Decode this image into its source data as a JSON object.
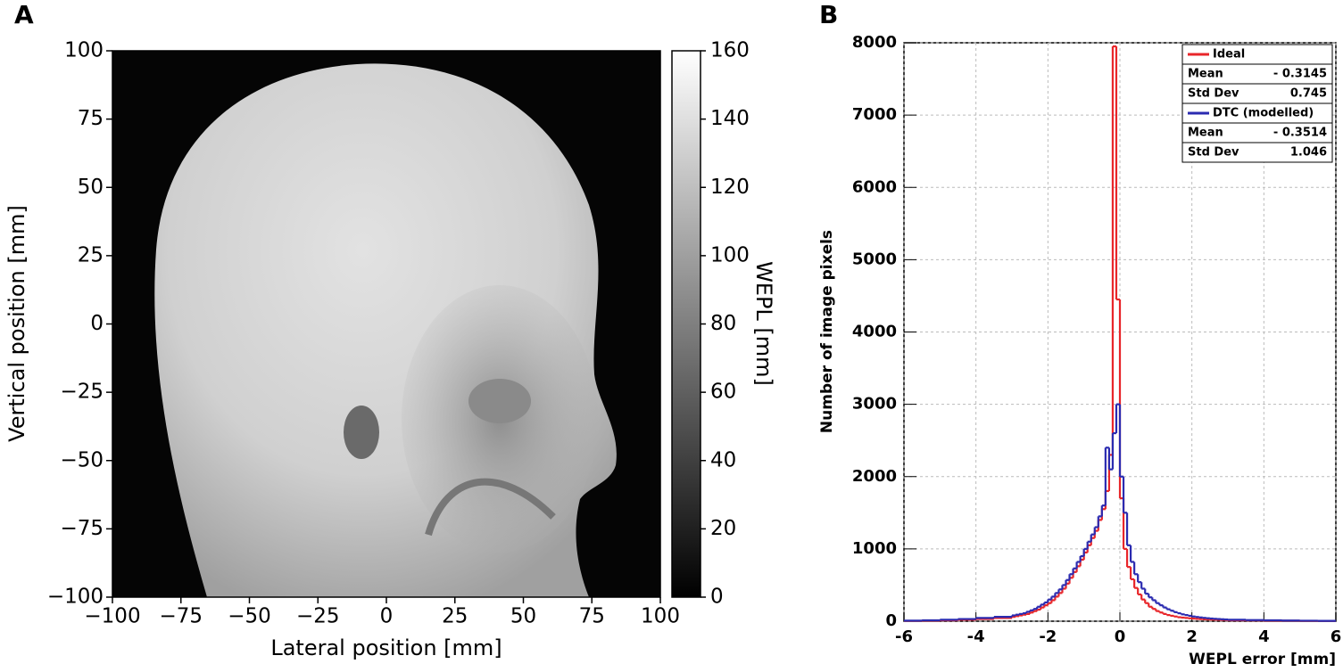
{
  "chart_data": [
    {
      "type": "image",
      "title": "A",
      "x_label": "Lateral position [mm]",
      "y_label": "Vertical position [mm]",
      "xlim": [
        -100,
        100
      ],
      "xticks": [
        {
          "value": -100,
          "label": "−100"
        },
        {
          "value": -75,
          "label": "−75"
        },
        {
          "value": -50,
          "label": "−50"
        },
        {
          "value": -25,
          "label": "−25"
        },
        0,
        25,
        50,
        75,
        100
      ],
      "ylim": [
        -100,
        100
      ],
      "yticks": [
        {
          "value": -100,
          "label": "−100"
        },
        {
          "value": -75,
          "label": "−75"
        },
        {
          "value": -50,
          "label": "−50"
        },
        {
          "value": -25,
          "label": "−25"
        },
        0,
        25,
        50,
        75,
        100
      ],
      "colorbar": {
        "label": "WEPL [mm]",
        "lim": [
          0,
          160
        ],
        "ticks": [
          0,
          20,
          40,
          60,
          80,
          100,
          120,
          140,
          160
        ]
      }
    },
    {
      "type": "histogram",
      "title": "B",
      "x_label": "WEPL error [mm]",
      "y_label": "Number of image pixels",
      "xlim": [
        -6,
        6
      ],
      "xticks": [
        -6,
        -4,
        -2,
        0,
        2,
        4,
        6
      ],
      "ylim": [
        0,
        8000
      ],
      "yticks": [
        0,
        1000,
        2000,
        3000,
        4000,
        5000,
        6000,
        7000,
        8000
      ],
      "grid": true,
      "legend": "upper right",
      "bins": [
        -6,
        -5.5,
        -5,
        -4.5,
        -4,
        -3.5,
        -3,
        -2.9,
        -2.8,
        -2.7,
        -2.6,
        -2.5,
        -2.4,
        -2.3,
        -2.2,
        -2.1,
        -2,
        -1.9,
        -1.8,
        -1.7,
        -1.6,
        -1.5,
        -1.4,
        -1.3,
        -1.2,
        -1.1,
        -1,
        -0.9,
        -0.8,
        -0.7,
        -0.6,
        -0.5,
        -0.4,
        -0.3,
        -0.2,
        -0.1,
        0,
        0.1,
        0.2,
        0.3,
        0.4,
        0.5,
        0.6,
        0.7,
        0.8,
        0.9,
        1,
        1.1,
        1.2,
        1.3,
        1.4,
        1.5,
        1.6,
        1.7,
        1.8,
        1.9,
        2,
        2.1,
        2.2,
        2.3,
        2.4,
        2.5,
        2.6,
        2.7,
        2.8,
        2.9,
        3,
        3.5,
        4,
        4.5,
        5,
        5.5,
        6
      ],
      "series": [
        {
          "name": "Ideal",
          "color": "#e8262a",
          "stats": [
            {
              "label": "Mean",
              "value": "- 0.3145"
            },
            {
              "label": "Std Dev",
              "value": "0.745"
            }
          ],
          "values": [
            5,
            8,
            12,
            20,
            30,
            45,
            60,
            70,
            80,
            90,
            100,
            120,
            140,
            160,
            190,
            220,
            250,
            290,
            340,
            390,
            450,
            520,
            600,
            680,
            760,
            850,
            950,
            1050,
            1150,
            1250,
            1400,
            1550,
            1800,
            2300,
            7950,
            4450,
            1700,
            1000,
            750,
            580,
            460,
            370,
            300,
            250,
            200,
            170,
            140,
            120,
            100,
            85,
            75,
            65,
            55,
            50,
            45,
            40,
            36,
            32,
            29,
            26,
            24,
            22,
            20,
            18,
            17,
            16,
            12,
            10,
            8,
            6,
            5,
            4
          ]
        },
        {
          "name": "DTC (modelled)",
          "color": "#2b2bb0",
          "stats": [
            {
              "label": "Mean",
              "value": "- 0.3514"
            },
            {
              "label": "Std Dev",
              "value": "1.046"
            }
          ],
          "values": [
            8,
            12,
            20,
            30,
            45,
            60,
            80,
            90,
            100,
            110,
            130,
            150,
            170,
            200,
            230,
            260,
            300,
            340,
            390,
            440,
            500,
            570,
            650,
            730,
            820,
            900,
            1000,
            1100,
            1200,
            1300,
            1450,
            1600,
            2400,
            2100,
            2600,
            3000,
            2000,
            1500,
            1050,
            820,
            650,
            540,
            450,
            380,
            330,
            290,
            250,
            220,
            190,
            165,
            145,
            125,
            110,
            95,
            85,
            75,
            65,
            58,
            52,
            46,
            41,
            37,
            33,
            30,
            27,
            24,
            20,
            15,
            12,
            9,
            7,
            5
          ]
        }
      ]
    }
  ]
}
